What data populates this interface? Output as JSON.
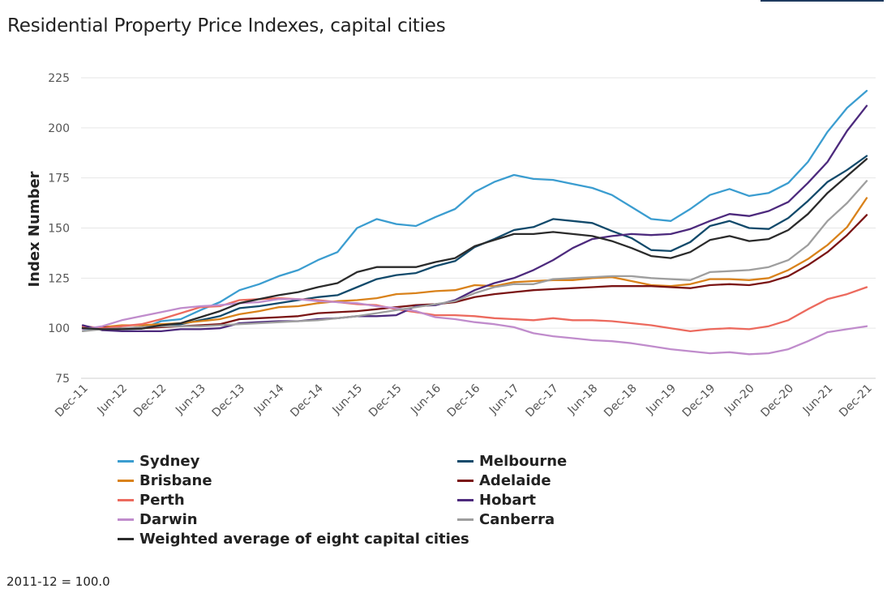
{
  "header": {
    "title": "Residential Property Price Indexes, capital cities"
  },
  "footnote": "2011-12 = 100.0",
  "colors": {
    "Sydney": "#3b9dd0",
    "Melbourne": "#124a6b",
    "Brisbane": "#d9821b",
    "Adelaide": "#7a1414",
    "Perth": "#ec6a5e",
    "Hobart": "#4d2a7d",
    "Darwin": "#c08ccc",
    "Canberra": "#9e9e9e",
    "Weighted average of eight capital cities": "#2b2b2b"
  },
  "chart_data": {
    "type": "line",
    "title": "Residential Property Price Indexes, capital cities",
    "ylabel": "Index Number",
    "xlabel": "",
    "ylim": [
      75,
      225
    ],
    "yticks": [
      75,
      100,
      125,
      150,
      175,
      200,
      225
    ],
    "grid": true,
    "legend_position": "bottom",
    "x_tick_labels": [
      "Dec-11",
      "Jun-12",
      "Dec-12",
      "Jun-13",
      "Dec-13",
      "Jun-14",
      "Dec-14",
      "Jun-15",
      "Dec-15",
      "Jun-16",
      "Dec-16",
      "Jun-17",
      "Dec-17",
      "Jun-18",
      "Dec-18",
      "Jun-19",
      "Dec-19",
      "Jun-20",
      "Dec-20",
      "Jun-21",
      "Dec-21"
    ],
    "x": [
      "Dec-11",
      "Mar-12",
      "Jun-12",
      "Sep-12",
      "Dec-12",
      "Mar-13",
      "Jun-13",
      "Sep-13",
      "Dec-13",
      "Mar-14",
      "Jun-14",
      "Sep-14",
      "Dec-14",
      "Mar-15",
      "Jun-15",
      "Sep-15",
      "Dec-15",
      "Mar-16",
      "Jun-16",
      "Sep-16",
      "Dec-16",
      "Mar-17",
      "Jun-17",
      "Sep-17",
      "Dec-17",
      "Mar-18",
      "Jun-18",
      "Sep-18",
      "Dec-18",
      "Mar-19",
      "Jun-19",
      "Sep-19",
      "Dec-19",
      "Mar-20",
      "Jun-20",
      "Sep-20",
      "Dec-20",
      "Mar-21",
      "Jun-21",
      "Sep-21",
      "Dec-21"
    ],
    "series": [
      {
        "name": "Sydney",
        "values": [
          99.5,
          100.0,
          99.5,
          99.8,
          103.5,
          104.5,
          109.0,
          113.0,
          119.0,
          122.0,
          126.0,
          129.0,
          134.0,
          138.0,
          150.0,
          154.5,
          152.0,
          151.0,
          155.5,
          159.5,
          168.0,
          173.0,
          176.5,
          174.5,
          174.0,
          172.0,
          170.0,
          166.5,
          160.5,
          154.5,
          153.5,
          159.5,
          166.5,
          169.5,
          166.0,
          167.5,
          172.5,
          183.0,
          198.0,
          210.0,
          218.5
        ]
      },
      {
        "name": "Melbourne",
        "values": [
          100.5,
          99.5,
          99.8,
          100.5,
          101.5,
          102.0,
          104.0,
          106.0,
          110.0,
          111.0,
          112.5,
          114.0,
          115.5,
          116.5,
          120.5,
          124.5,
          126.5,
          127.5,
          131.0,
          133.5,
          140.5,
          144.5,
          149.0,
          150.5,
          154.5,
          153.5,
          152.5,
          148.5,
          145.0,
          139.0,
          138.5,
          143.0,
          151.0,
          153.5,
          150.0,
          149.5,
          155.0,
          163.5,
          173.0,
          179.0,
          186.0
        ]
      },
      {
        "name": "Brisbane",
        "values": [
          100.0,
          100.5,
          101.5,
          101.5,
          102.0,
          102.5,
          103.5,
          104.5,
          107.0,
          108.5,
          110.5,
          111.0,
          112.5,
          113.5,
          114.0,
          115.0,
          117.0,
          117.5,
          118.5,
          119.0,
          121.5,
          121.0,
          123.0,
          123.5,
          124.0,
          124.0,
          125.0,
          125.5,
          123.5,
          121.5,
          121.0,
          122.0,
          124.5,
          124.5,
          124.0,
          125.0,
          129.0,
          134.5,
          141.5,
          150.5,
          165.0
        ]
      },
      {
        "name": "Adelaide",
        "values": [
          100.0,
          100.5,
          100.0,
          100.0,
          100.5,
          101.0,
          101.5,
          102.0,
          104.5,
          105.0,
          105.5,
          106.0,
          107.5,
          108.0,
          108.5,
          109.5,
          110.5,
          111.5,
          112.0,
          113.0,
          115.5,
          117.0,
          118.0,
          119.0,
          119.5,
          120.0,
          120.5,
          121.0,
          121.0,
          121.0,
          120.5,
          120.0,
          121.5,
          122.0,
          121.5,
          123.0,
          126.0,
          131.5,
          138.0,
          146.5,
          156.5
        ]
      },
      {
        "name": "Perth",
        "values": [
          101.0,
          100.0,
          101.0,
          102.0,
          104.5,
          107.5,
          110.5,
          111.0,
          114.0,
          114.5,
          115.0,
          114.5,
          114.0,
          113.0,
          112.0,
          111.5,
          109.5,
          108.0,
          106.5,
          106.5,
          106.0,
          105.0,
          104.5,
          104.0,
          105.0,
          104.0,
          104.0,
          103.5,
          102.5,
          101.5,
          100.0,
          98.5,
          99.5,
          100.0,
          99.5,
          101.0,
          104.0,
          109.5,
          114.5,
          117.0,
          120.5
        ]
      },
      {
        "name": "Hobart",
        "values": [
          101.5,
          99.0,
          98.5,
          98.5,
          98.5,
          99.5,
          99.5,
          100.0,
          102.5,
          103.0,
          103.5,
          103.5,
          104.5,
          105.0,
          106.0,
          106.0,
          106.5,
          111.0,
          111.5,
          114.0,
          119.0,
          122.5,
          125.0,
          129.0,
          134.0,
          140.0,
          144.5,
          146.0,
          147.0,
          146.5,
          147.0,
          149.5,
          153.5,
          157.0,
          156.0,
          158.5,
          163.0,
          172.5,
          183.0,
          198.5,
          211.0
        ]
      },
      {
        "name": "Darwin",
        "values": [
          99.5,
          101.0,
          104.0,
          106.0,
          108.0,
          110.0,
          111.0,
          111.5,
          112.5,
          113.0,
          114.5,
          114.5,
          113.5,
          113.0,
          112.5,
          111.0,
          110.0,
          108.5,
          105.5,
          104.5,
          103.0,
          102.0,
          100.5,
          97.5,
          96.0,
          95.0,
          94.0,
          93.5,
          92.5,
          91.0,
          89.5,
          88.5,
          87.5,
          88.0,
          87.0,
          87.5,
          89.5,
          93.5,
          98.0,
          99.5,
          101.0
        ]
      },
      {
        "name": "Canberra",
        "values": [
          98.5,
          99.5,
          100.0,
          100.5,
          101.0,
          101.0,
          101.0,
          101.5,
          102.0,
          102.5,
          103.0,
          103.5,
          104.0,
          105.0,
          106.0,
          107.5,
          109.0,
          110.5,
          112.0,
          113.5,
          117.5,
          120.5,
          122.0,
          122.0,
          124.5,
          125.0,
          125.5,
          126.0,
          126.0,
          125.0,
          124.5,
          124.0,
          128.0,
          128.5,
          129.0,
          130.5,
          134.0,
          141.5,
          153.5,
          162.5,
          173.5
        ]
      },
      {
        "name": "Weighted average of eight capital cities",
        "values": [
          100.0,
          99.5,
          99.5,
          99.8,
          101.5,
          102.5,
          105.5,
          108.5,
          112.5,
          114.5,
          116.5,
          118.0,
          120.5,
          122.5,
          128.0,
          130.5,
          130.5,
          130.5,
          133.0,
          135.0,
          141.0,
          144.0,
          147.0,
          147.0,
          148.0,
          147.0,
          146.0,
          143.5,
          140.0,
          136.0,
          135.0,
          138.0,
          144.0,
          146.0,
          143.5,
          144.5,
          149.0,
          157.0,
          167.5,
          176.0,
          184.5
        ]
      }
    ]
  },
  "legend": {
    "items": [
      "Sydney",
      "Melbourne",
      "Brisbane",
      "Adelaide",
      "Perth",
      "Hobart",
      "Darwin",
      "Canberra",
      "Weighted average of eight capital cities"
    ]
  }
}
